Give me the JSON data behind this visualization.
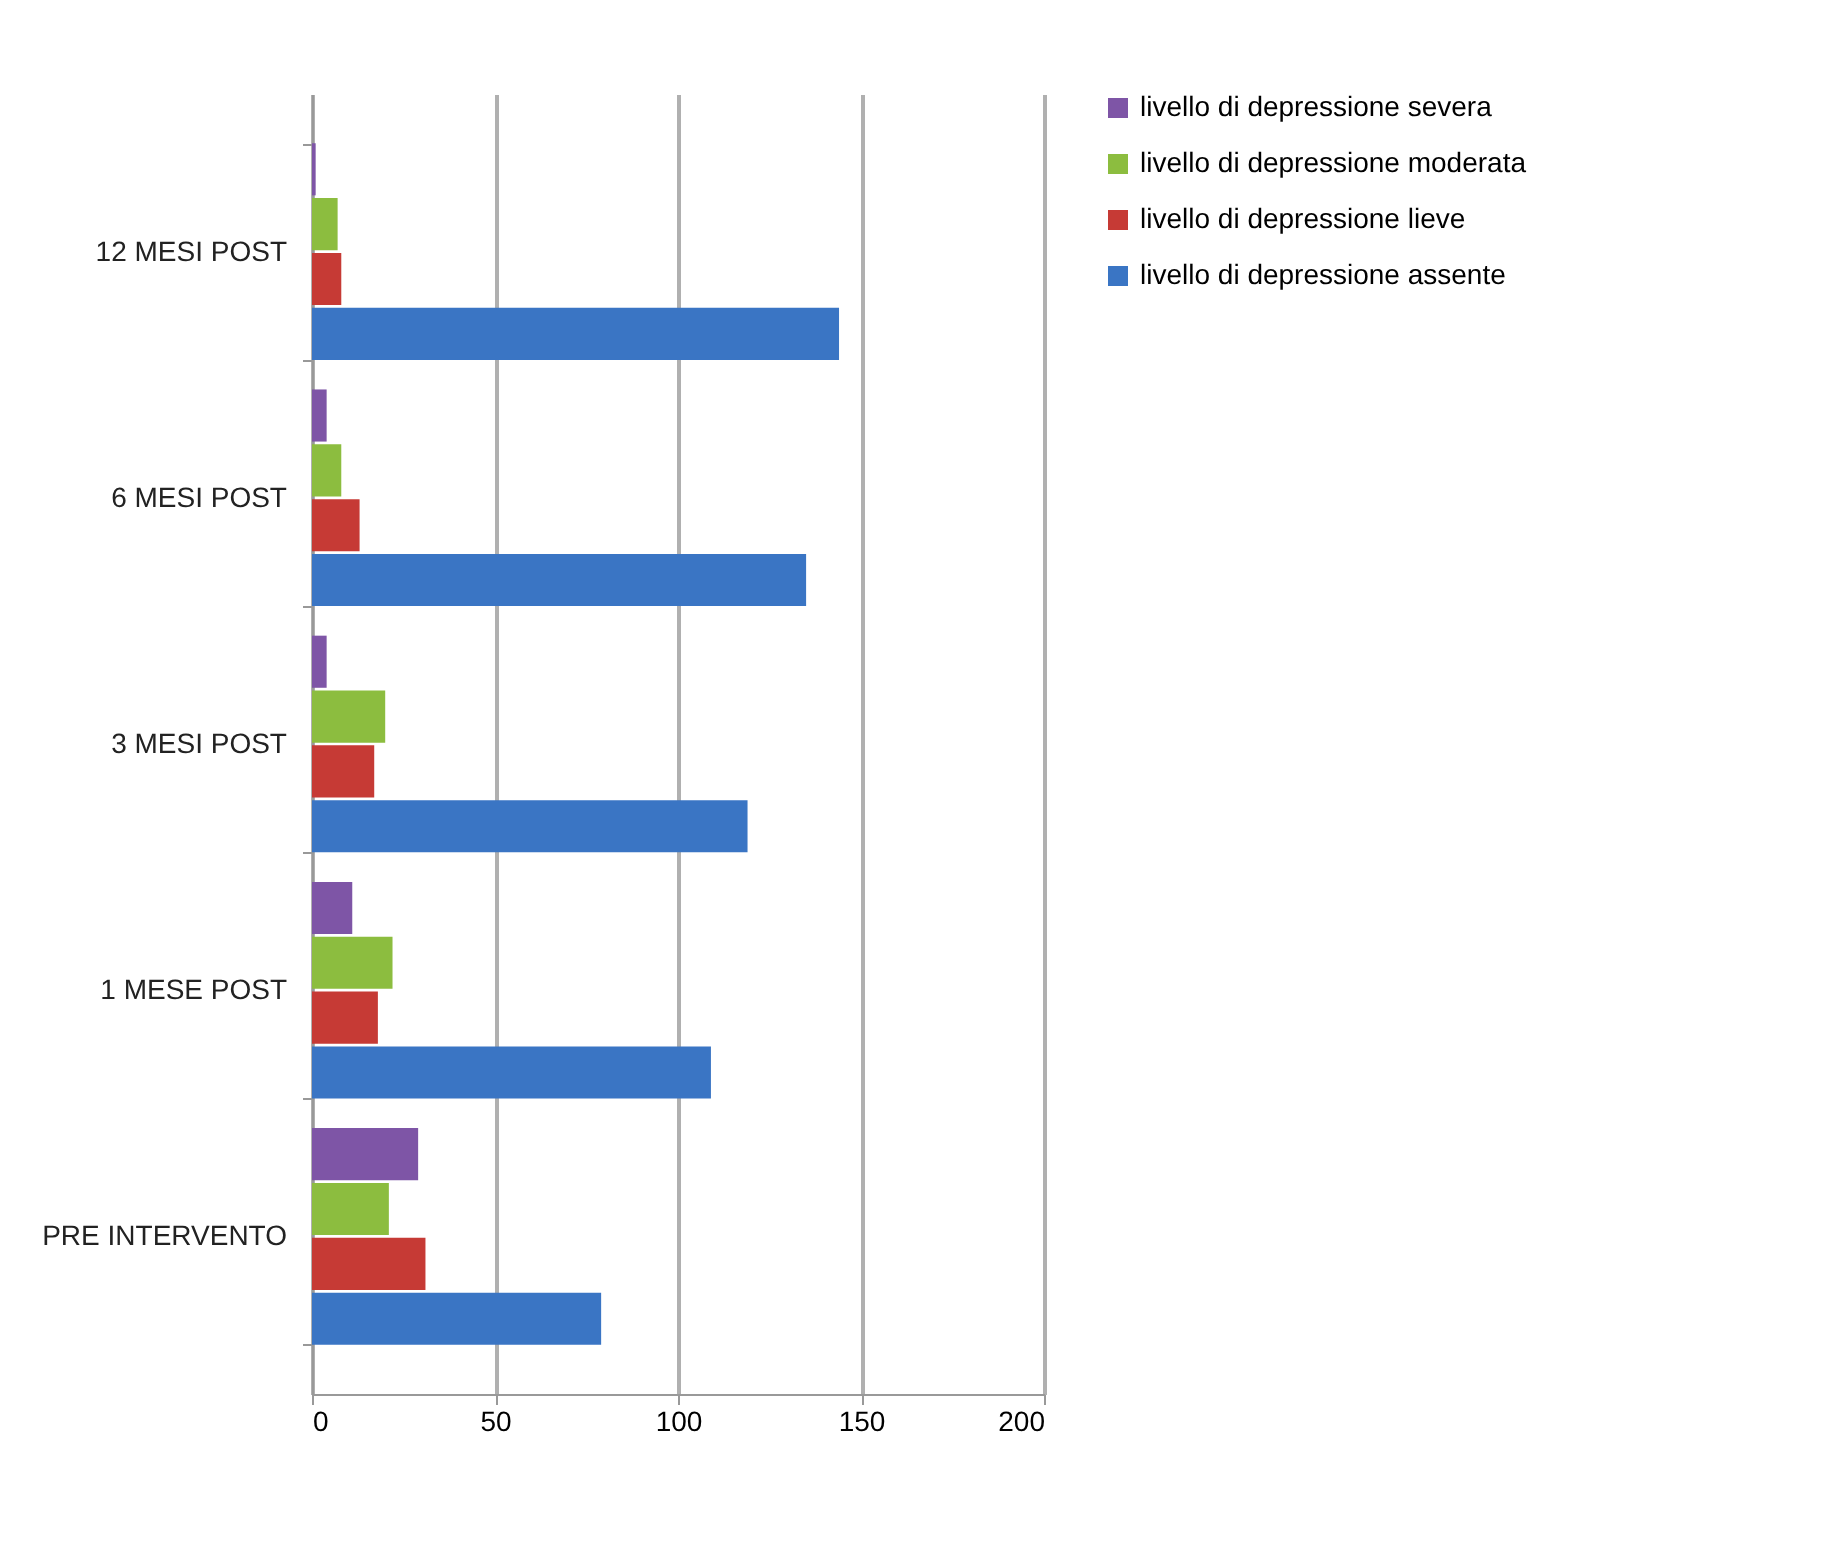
{
  "chart_data": {
    "type": "bar",
    "orientation": "horizontal",
    "categories": [
      "12 MESI POST",
      "6 MESI POST",
      "3 MESI POST",
      "1 MESE POST",
      "PRE INTERVENTO"
    ],
    "series": [
      {
        "name": "livello di depressione severa",
        "color": "#7e55a6",
        "values": [
          1,
          4,
          4,
          11,
          29
        ]
      },
      {
        "name": "livello di depressione moderata",
        "color": "#8cbd3f",
        "values": [
          7,
          8,
          20,
          22,
          21
        ]
      },
      {
        "name": "livello di depressione lieve",
        "color": "#c63a35",
        "values": [
          8,
          13,
          17,
          18,
          31
        ]
      },
      {
        "name": "livello di depressione assente",
        "color": "#3a75c4",
        "values": [
          144,
          135,
          119,
          109,
          79
        ]
      }
    ],
    "xlim": [
      0,
      200
    ],
    "xticks": [
      0,
      50,
      100,
      150,
      200
    ],
    "grid": "x",
    "legend": "right"
  }
}
